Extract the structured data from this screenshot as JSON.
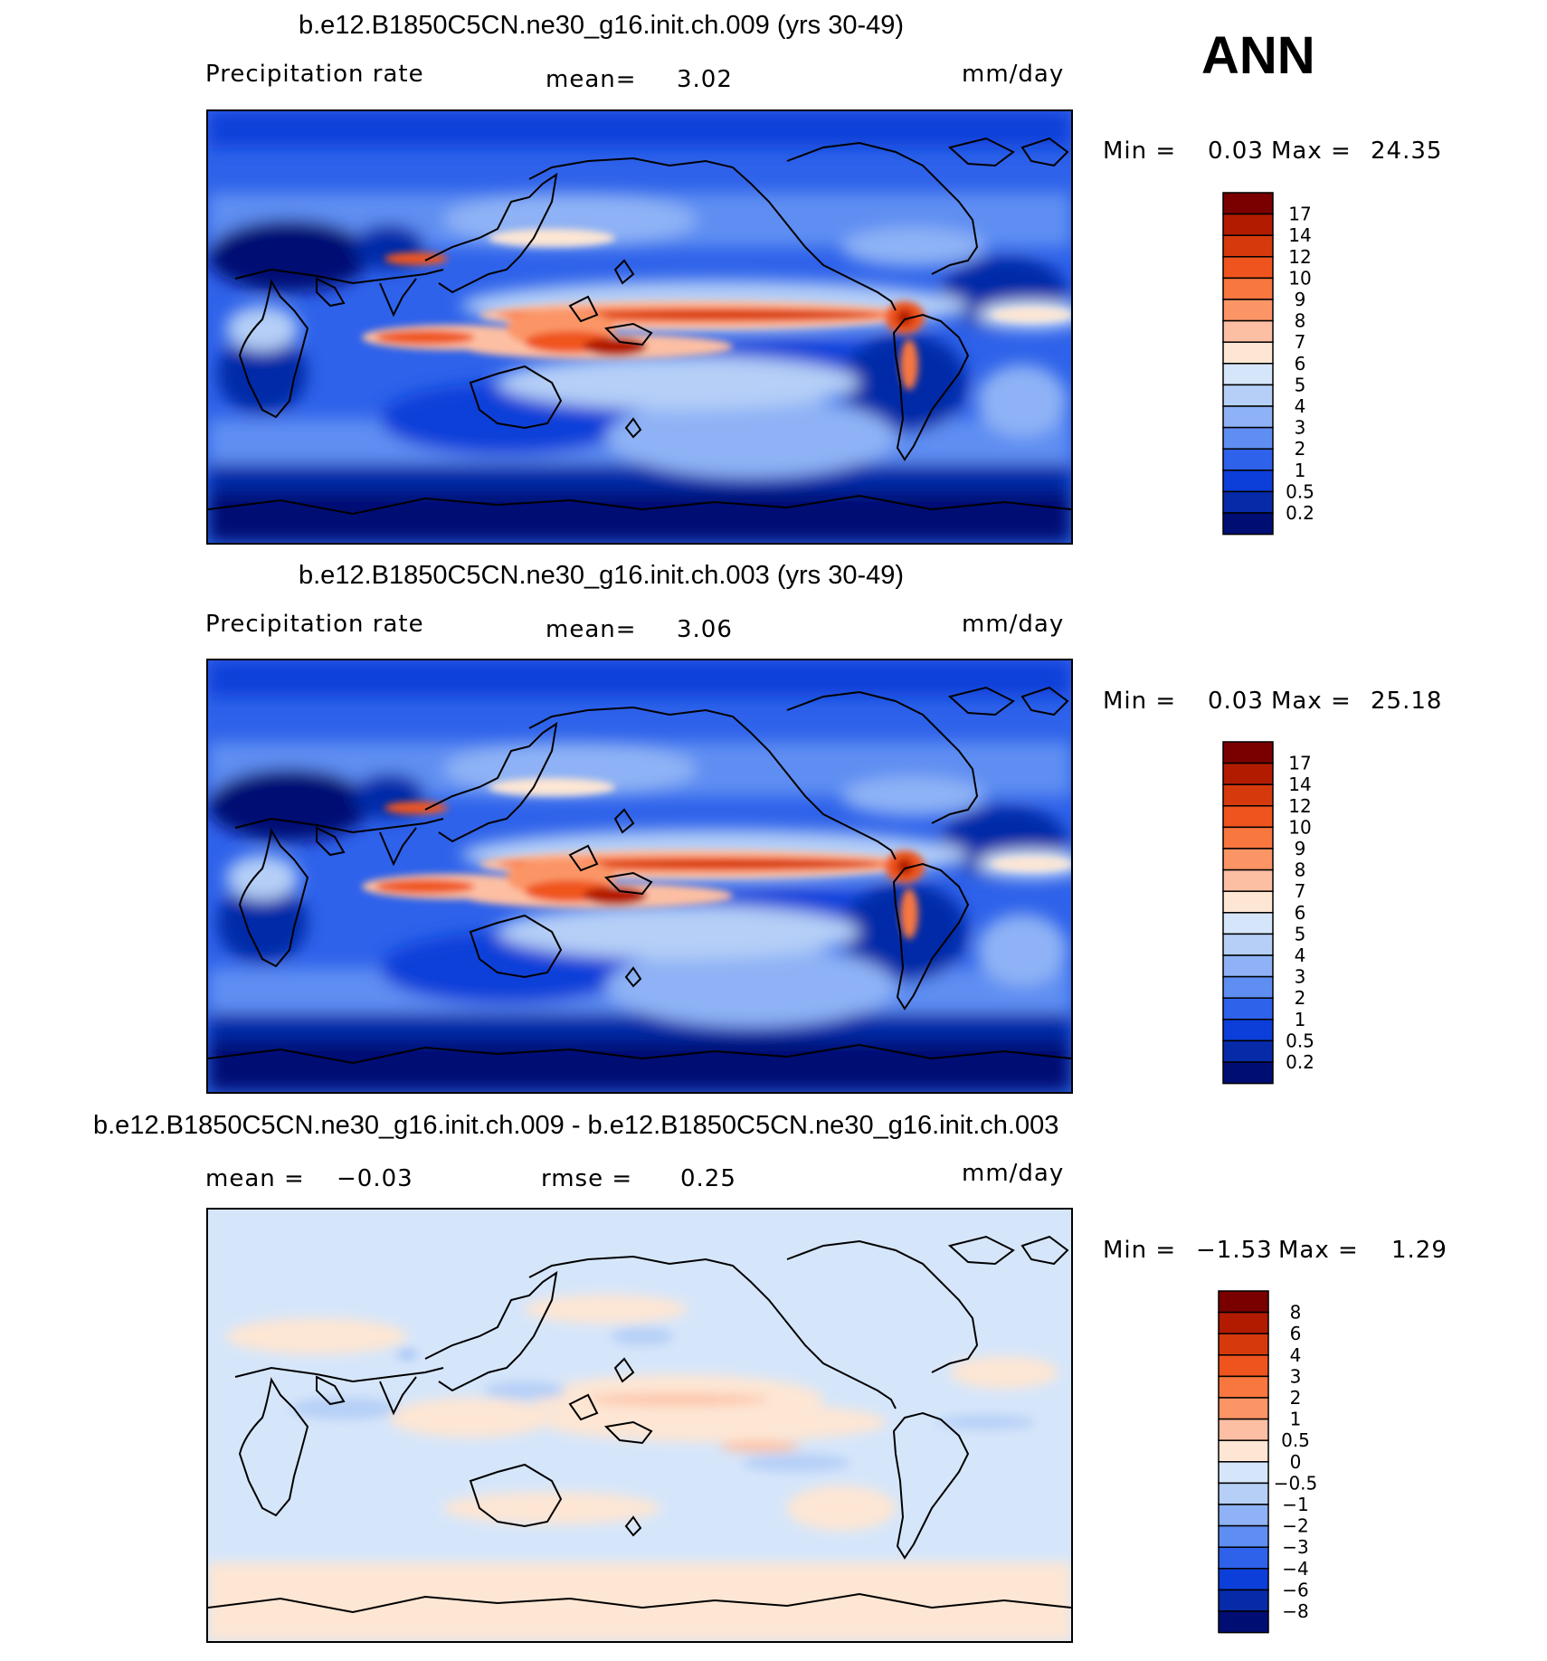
{
  "season": "ANN",
  "units": "mm/day",
  "panels": [
    {
      "id": "top",
      "title": "b.e12.B1850C5CN.ne30_g16.init.ch.009 (yrs 30-49)",
      "variable": "Precipitation rate",
      "stat_label": "mean=",
      "stat_value": "3.02",
      "units": "mm/day",
      "min_label": "Min =",
      "min_value": "0.03",
      "max_label": "Max =",
      "max_value": "24.35",
      "colorbar": {
        "labels": [
          "17",
          "14",
          "12",
          "10",
          "9",
          "8",
          "7",
          "6",
          "5",
          "4",
          "3",
          "2",
          "1",
          "0.5",
          "0.2"
        ],
        "colors": [
          "#7a0000",
          "#b31b00",
          "#d63a0c",
          "#f0541e",
          "#f8773f",
          "#fb9566",
          "#fdbfa3",
          "#fde6d4",
          "#d6e6fa",
          "#b5cff7",
          "#8eb2f5",
          "#5f8ef2",
          "#2e62ea",
          "#0c3fd9",
          "#062aa8",
          "#000d73"
        ]
      }
    },
    {
      "id": "middle",
      "title": "b.e12.B1850C5CN.ne30_g16.init.ch.003 (yrs 30-49)",
      "variable": "Precipitation rate",
      "stat_label": "mean=",
      "stat_value": "3.06",
      "units": "mm/day",
      "min_label": "Min =",
      "min_value": "0.03",
      "max_label": "Max =",
      "max_value": "25.18",
      "colorbar": {
        "labels": [
          "17",
          "14",
          "12",
          "10",
          "9",
          "8",
          "7",
          "6",
          "5",
          "4",
          "3",
          "2",
          "1",
          "0.5",
          "0.2"
        ],
        "colors": [
          "#7a0000",
          "#b31b00",
          "#d63a0c",
          "#f0541e",
          "#f8773f",
          "#fb9566",
          "#fdbfa3",
          "#fde6d4",
          "#d6e6fa",
          "#b5cff7",
          "#8eb2f5",
          "#5f8ef2",
          "#2e62ea",
          "#0c3fd9",
          "#062aa8",
          "#000d73"
        ]
      }
    },
    {
      "id": "bottom",
      "title": "b.e12.B1850C5CN.ne30_g16.init.ch.009 - b.e12.B1850C5CN.ne30_g16.init.ch.003",
      "mean_label": "mean =",
      "mean_value": "−0.03",
      "rmse_label": "rmse =",
      "rmse_value": "0.25",
      "units": "mm/day",
      "min_label": "Min =",
      "min_value": "−1.53",
      "max_label": "Max =",
      "max_value": "1.29",
      "colorbar": {
        "labels": [
          "8",
          "6",
          "4",
          "3",
          "2",
          "1",
          "0.5",
          "0",
          "−0.5",
          "−1",
          "−2",
          "−3",
          "−4",
          "−6",
          "−8"
        ],
        "colors": [
          "#7a0000",
          "#b31b00",
          "#d63a0c",
          "#f0541e",
          "#f8773f",
          "#fb9566",
          "#fdbfa3",
          "#fde6d4",
          "#d6e6fa",
          "#b5cff7",
          "#8eb2f5",
          "#5f8ef2",
          "#2e62ea",
          "#0c3fd9",
          "#062aa8",
          "#000d73"
        ]
      }
    }
  ]
}
